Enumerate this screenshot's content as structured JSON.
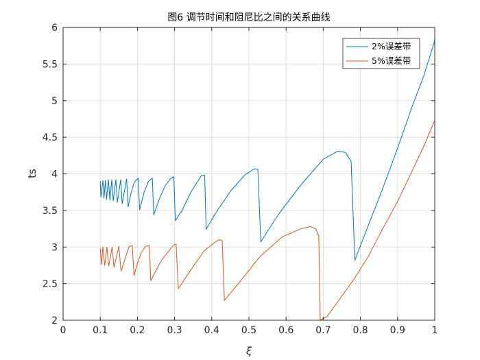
{
  "chart_data": {
    "type": "line",
    "title": "图6 调节时间和阻尼比之间的关系曲线",
    "xlabel": "ξ",
    "ylabel": "ts",
    "xlim": [
      0,
      1
    ],
    "ylim": [
      2,
      6
    ],
    "xticks": [
      "0",
      "0.1",
      "0.2",
      "0.3",
      "0.4",
      "0.5",
      "0.6",
      "0.7",
      "0.8",
      "0.9",
      "1"
    ],
    "yticks": [
      "2",
      "2.5",
      "3",
      "3.5",
      "4",
      "4.5",
      "5",
      "5.5",
      "6"
    ],
    "grid": true,
    "legend_position": "top-right",
    "series": [
      {
        "name": "2%误差带",
        "color": "#0072BD",
        "points": [
          [
            0.1,
            3.9
          ],
          [
            0.102,
            3.68
          ],
          [
            0.107,
            3.91
          ],
          [
            0.11,
            3.67
          ],
          [
            0.114,
            3.91
          ],
          [
            0.117,
            3.65
          ],
          [
            0.122,
            3.92
          ],
          [
            0.126,
            3.64
          ],
          [
            0.131,
            3.92
          ],
          [
            0.135,
            3.63
          ],
          [
            0.142,
            3.92
          ],
          [
            0.146,
            3.61
          ],
          [
            0.155,
            3.92
          ],
          [
            0.159,
            3.59
          ],
          [
            0.171,
            3.93
          ],
          [
            0.175,
            3.55
          ],
          [
            0.183,
            3.74
          ],
          [
            0.191,
            3.88
          ],
          [
            0.202,
            3.94
          ],
          [
            0.206,
            3.51
          ],
          [
            0.218,
            3.75
          ],
          [
            0.23,
            3.9
          ],
          [
            0.24,
            3.94
          ],
          [
            0.244,
            3.44
          ],
          [
            0.26,
            3.67
          ],
          [
            0.275,
            3.84
          ],
          [
            0.29,
            3.94
          ],
          [
            0.298,
            3.96
          ],
          [
            0.302,
            3.36
          ],
          [
            0.32,
            3.5
          ],
          [
            0.345,
            3.76
          ],
          [
            0.365,
            3.92
          ],
          [
            0.373,
            3.98
          ],
          [
            0.381,
            3.98
          ],
          [
            0.385,
            3.24
          ],
          [
            0.41,
            3.46
          ],
          [
            0.45,
            3.76
          ],
          [
            0.49,
            3.99
          ],
          [
            0.515,
            4.07
          ],
          [
            0.524,
            4.06
          ],
          [
            0.532,
            3.07
          ],
          [
            0.58,
            3.45
          ],
          [
            0.64,
            3.85
          ],
          [
            0.7,
            4.2
          ],
          [
            0.74,
            4.31
          ],
          [
            0.76,
            4.29
          ],
          [
            0.775,
            4.17
          ],
          [
            0.785,
            2.82
          ],
          [
            0.82,
            3.28
          ],
          [
            0.86,
            3.8
          ],
          [
            0.9,
            4.35
          ],
          [
            0.94,
            4.93
          ],
          [
            0.97,
            5.33
          ],
          [
            1.0,
            5.82
          ]
        ]
      },
      {
        "name": "5%误差带",
        "color": "#D95319",
        "points": [
          [
            0.1,
            2.98
          ],
          [
            0.103,
            2.76
          ],
          [
            0.107,
            3.0
          ],
          [
            0.112,
            2.75
          ],
          [
            0.118,
            3.0
          ],
          [
            0.123,
            2.74
          ],
          [
            0.132,
            3.0
          ],
          [
            0.137,
            2.72
          ],
          [
            0.15,
            3.01
          ],
          [
            0.156,
            2.67
          ],
          [
            0.17,
            2.89
          ],
          [
            0.178,
            3.01
          ],
          [
            0.186,
            3.02
          ],
          [
            0.191,
            2.61
          ],
          [
            0.2,
            2.78
          ],
          [
            0.21,
            2.92
          ],
          [
            0.222,
            3.01
          ],
          [
            0.232,
            3.02
          ],
          [
            0.236,
            2.54
          ],
          [
            0.248,
            2.66
          ],
          [
            0.265,
            2.82
          ],
          [
            0.285,
            2.95
          ],
          [
            0.298,
            3.03
          ],
          [
            0.304,
            3.04
          ],
          [
            0.31,
            2.43
          ],
          [
            0.34,
            2.66
          ],
          [
            0.38,
            2.95
          ],
          [
            0.41,
            3.07
          ],
          [
            0.42,
            3.1
          ],
          [
            0.428,
            3.09
          ],
          [
            0.434,
            2.27
          ],
          [
            0.47,
            2.49
          ],
          [
            0.53,
            2.87
          ],
          [
            0.59,
            3.14
          ],
          [
            0.64,
            3.25
          ],
          [
            0.665,
            3.28
          ],
          [
            0.68,
            3.25
          ],
          [
            0.688,
            3.15
          ],
          [
            0.692,
            2.0
          ],
          [
            0.71,
            2.05
          ],
          [
            0.74,
            2.26
          ],
          [
            0.78,
            2.54
          ],
          [
            0.82,
            2.86
          ],
          [
            0.86,
            3.25
          ],
          [
            0.9,
            3.62
          ],
          [
            0.94,
            4.05
          ],
          [
            0.97,
            4.37
          ],
          [
            1.0,
            4.73
          ]
        ]
      }
    ]
  }
}
